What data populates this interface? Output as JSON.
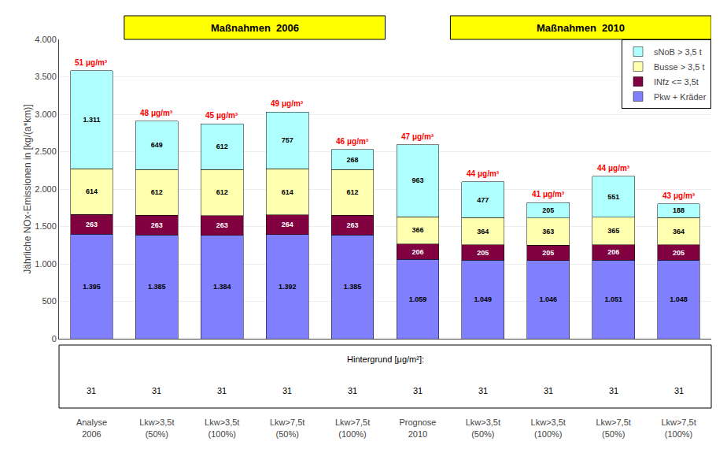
{
  "chart_data": {
    "type": "bar",
    "stacked": true,
    "categories": [
      "Analyse\n2006",
      "Lkw>3,5t\n(50%)",
      "Lkw>3,5t\n(100%)",
      "Lkw>7,5t\n(50%)",
      "Lkw>7,5t\n(100%)",
      "Prognose\n2010",
      "Lkw>3,5t\n(50%)",
      "Lkw>3,5t\n(100%)",
      "Lkw>7,5t\n(50%)",
      "Lkw>7,5t\n(100%)"
    ],
    "series": [
      {
        "name": "Pkw + Kräder",
        "color": "#8080FF",
        "values": [
          1395,
          1385,
          1384,
          1392,
          1385,
          1059,
          1049,
          1046,
          1051,
          1048
        ],
        "value_labels": [
          "1.395",
          "1.385",
          "1.384",
          "1.392",
          "1.385",
          "1.059",
          "1.049",
          "1.046",
          "1.051",
          "1.048"
        ]
      },
      {
        "name": "INfz <= 3,5t",
        "color": "#800040",
        "values": [
          263,
          263,
          263,
          264,
          263,
          206,
          205,
          205,
          206,
          205
        ]
      },
      {
        "name": "Busse > 3,5 t",
        "color": "#FFFFB0",
        "values": [
          614,
          612,
          612,
          614,
          612,
          366,
          364,
          363,
          365,
          364
        ]
      },
      {
        "name": "sNoB > 3,5 t",
        "color": "#B0FFFF",
        "values": [
          1311,
          649,
          612,
          757,
          268,
          963,
          477,
          205,
          551,
          188
        ],
        "value_labels": [
          "1.311",
          "649",
          "612",
          "757",
          "268",
          "963",
          "477",
          "205",
          "551",
          "188"
        ]
      }
    ],
    "data_labels": true,
    "ylabel": "Jährliche NOx-Emissionen in [kg/(a*km)]",
    "ylim": [
      0,
      4000
    ],
    "yticks": [
      0,
      500,
      {
        "value": 1000,
        "label": "1.000"
      },
      {
        "value": 1500,
        "label": "1.500"
      },
      {
        "value": 2000,
        "label": "2.000"
      },
      {
        "value": 2500,
        "label": "2.500"
      },
      {
        "value": 3000,
        "label": "3.000"
      },
      {
        "value": 3500,
        "label": "3.500"
      },
      {
        "value": 4000,
        "label": "4.000"
      }
    ],
    "grid": true,
    "legend": "upper right",
    "annotations": [
      {
        "text": "51 μg/m³",
        "x": 0,
        "color": "red"
      },
      {
        "text": "48 μg/m³",
        "x": 1,
        "color": "red"
      },
      {
        "text": "45 μg/m³",
        "x": 2,
        "color": "red"
      },
      {
        "text": "49 μg/m³",
        "x": 3,
        "color": "red"
      },
      {
        "text": "46 μg/m³",
        "x": 4,
        "color": "red"
      },
      {
        "text": "47 μg/m³",
        "x": 5,
        "color": "red"
      },
      {
        "text": "44 μg/m³",
        "x": 6,
        "color": "red"
      },
      {
        "text": "41 μg/m³",
        "x": 7,
        "color": "red"
      },
      {
        "text": "44 μg/m³",
        "x": 8,
        "color": "red"
      },
      {
        "text": "43 μg/m³",
        "x": 9,
        "color": "red"
      },
      {
        "text": "Maßnahmen  2006",
        "x": [
          1,
          4
        ],
        "color": "#FFFF00"
      },
      {
        "text": "Maßnahmen  2010",
        "x": [
          6,
          9
        ],
        "color": "#FFFF00"
      },
      {
        "text": "Hintergrund [μg/m²]:"
      },
      {
        "text": "31",
        "x": 0
      },
      {
        "text": "31",
        "x": 1
      },
      {
        "text": "31",
        "x": 2
      },
      {
        "text": "31",
        "x": 3
      },
      {
        "text": "31",
        "x": 4
      },
      {
        "text": "31",
        "x": 5
      },
      {
        "text": "31",
        "x": 6
      },
      {
        "text": "31",
        "x": 7
      },
      {
        "text": "31",
        "x": 8
      },
      {
        "text": "31",
        "x": 9
      }
    ]
  }
}
